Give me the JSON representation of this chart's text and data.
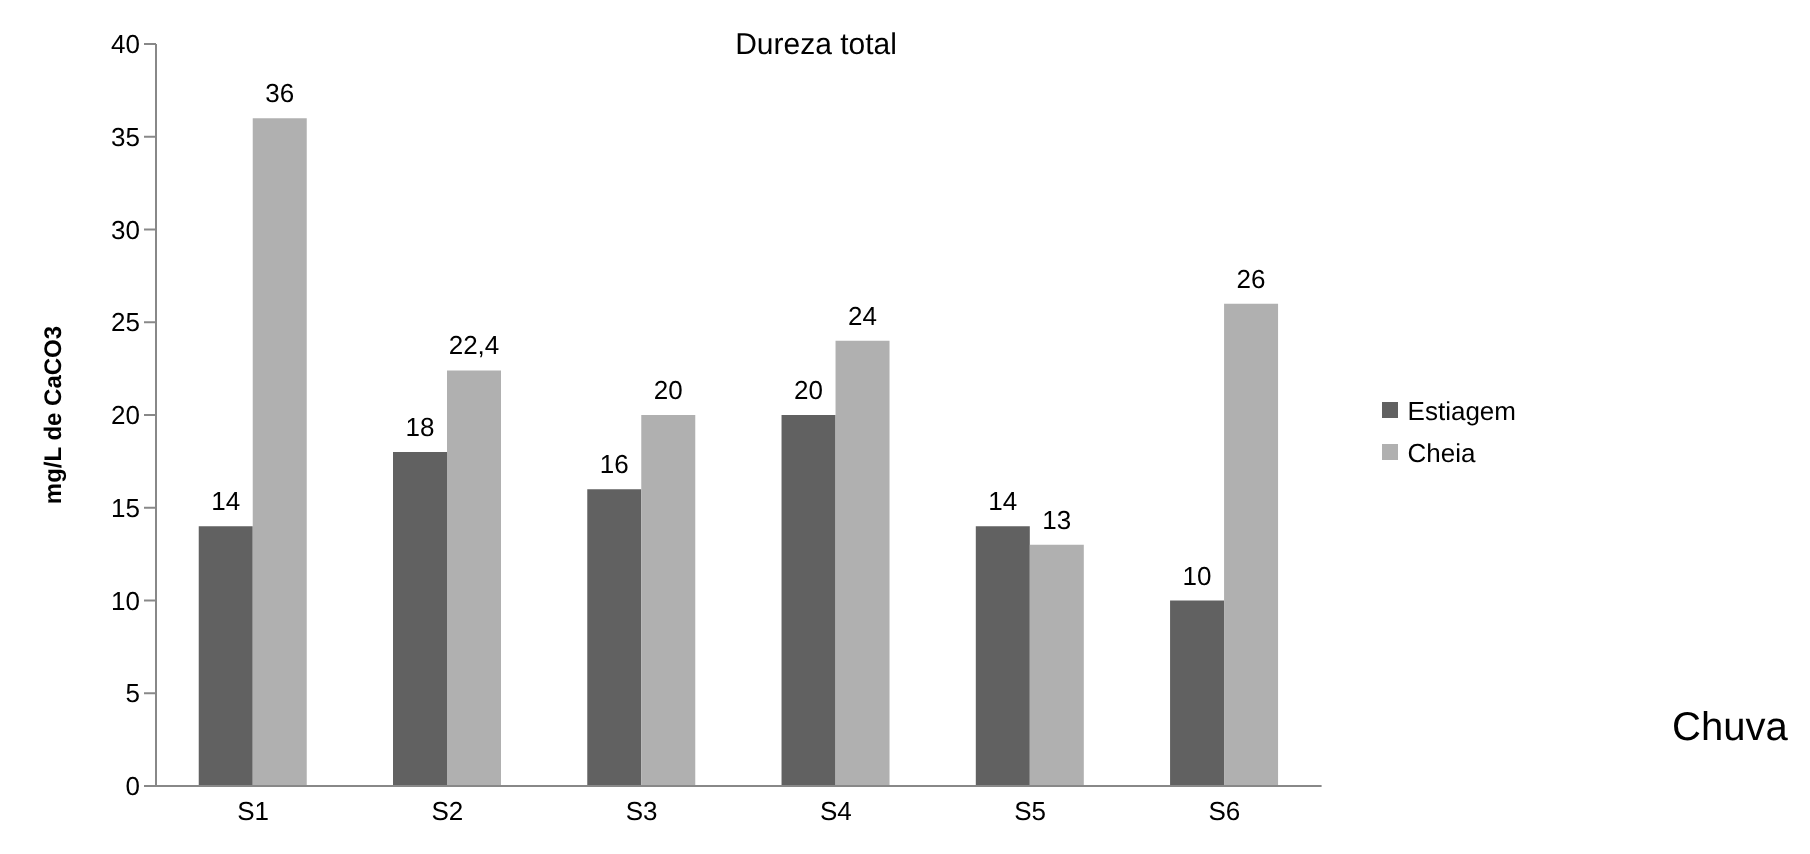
{
  "chart_data": {
    "type": "bar",
    "title": "Dureza total",
    "ylabel": "mg/L de CaCO3",
    "categories": [
      "S1",
      "S2",
      "S3",
      "S4",
      "S5",
      "S6"
    ],
    "series": [
      {
        "name": "Estiagem",
        "color": "#616161",
        "values": [
          14,
          18,
          16,
          20,
          14,
          10
        ],
        "value_labels": [
          "14",
          "18",
          "16",
          "20",
          "14",
          "10"
        ]
      },
      {
        "name": "Cheia",
        "color": "#b0b0b0",
        "values": [
          36,
          22.4,
          20,
          24,
          13,
          26
        ],
        "value_labels": [
          "36",
          "22,4",
          "20",
          "24",
          "13",
          "26"
        ]
      }
    ],
    "ylim": [
      0,
      40
    ],
    "yticks": [
      0,
      5,
      10,
      15,
      20,
      25,
      30,
      35,
      40
    ],
    "legend": "right",
    "annotations": [
      "Chuva"
    ]
  }
}
